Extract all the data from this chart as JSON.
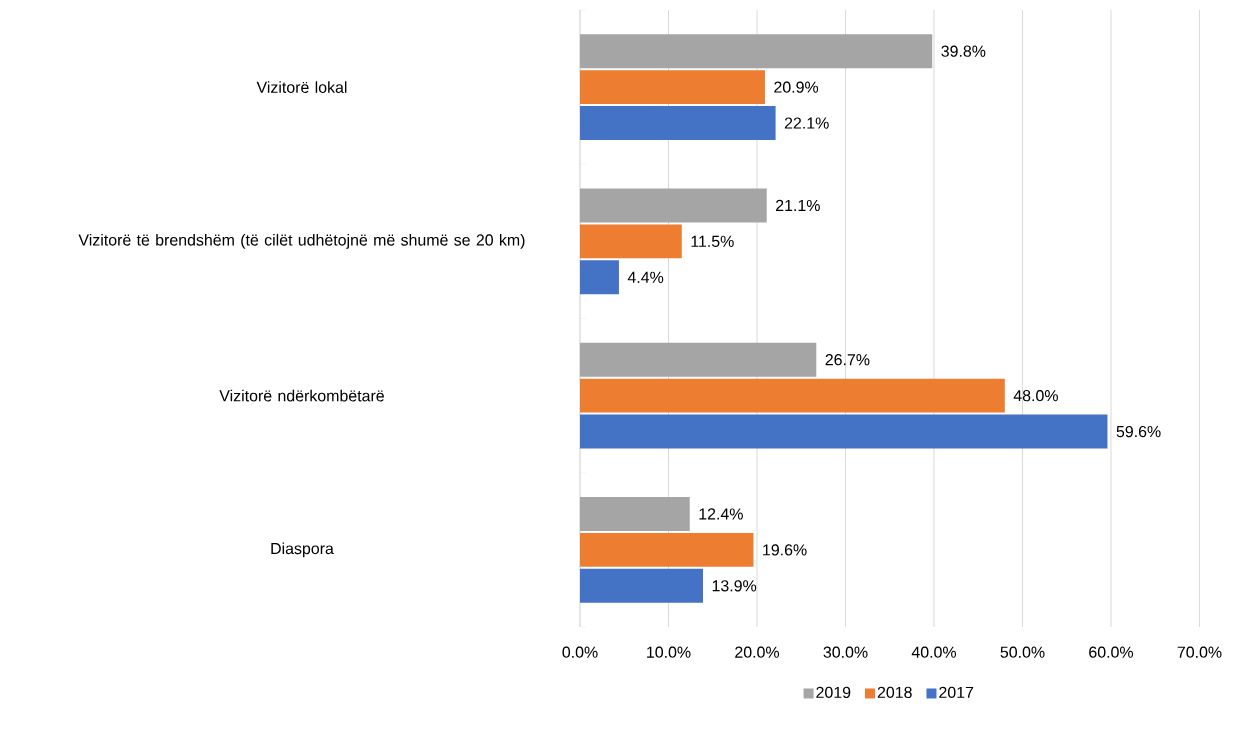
{
  "chart_data": {
    "type": "bar",
    "orientation": "horizontal",
    "categories": [
      "Vizitorë lokal",
      "Vizitorë të brendshëm (të cilët udhëtojnë më shumë se 20 km)",
      "Vizitorë ndërkombëtarë",
      "Diaspora"
    ],
    "series": [
      {
        "name": "2019",
        "color": "#a5a5a5",
        "values": [
          39.8,
          21.1,
          26.7,
          12.4
        ],
        "value_labels": [
          "39.8%",
          "21.1%",
          "26.7%",
          "12.4%"
        ]
      },
      {
        "name": "2018",
        "color": "#ed7d31",
        "values": [
          20.9,
          11.5,
          48.0,
          19.6
        ],
        "value_labels": [
          "20.9%",
          "11.5%",
          "48.0%",
          "19.6%"
        ]
      },
      {
        "name": "2017",
        "color": "#4472c4",
        "values": [
          22.1,
          4.4,
          59.6,
          13.9
        ],
        "value_labels": [
          "22.1%",
          "4.4%",
          "59.6%",
          "13.9%"
        ]
      }
    ],
    "xlim": [
      0,
      70
    ],
    "xticks": [
      {
        "value": 0,
        "label": "0.0%"
      },
      {
        "value": 10,
        "label": "10.0%"
      },
      {
        "value": 20,
        "label": "20.0%"
      },
      {
        "value": 30,
        "label": "30.0%"
      },
      {
        "value": 40,
        "label": "40.0%"
      },
      {
        "value": 50,
        "label": "50.0%"
      },
      {
        "value": 60,
        "label": "60.0%"
      },
      {
        "value": 70,
        "label": "70.0%"
      }
    ],
    "grid": "x",
    "legend": "bottom"
  }
}
